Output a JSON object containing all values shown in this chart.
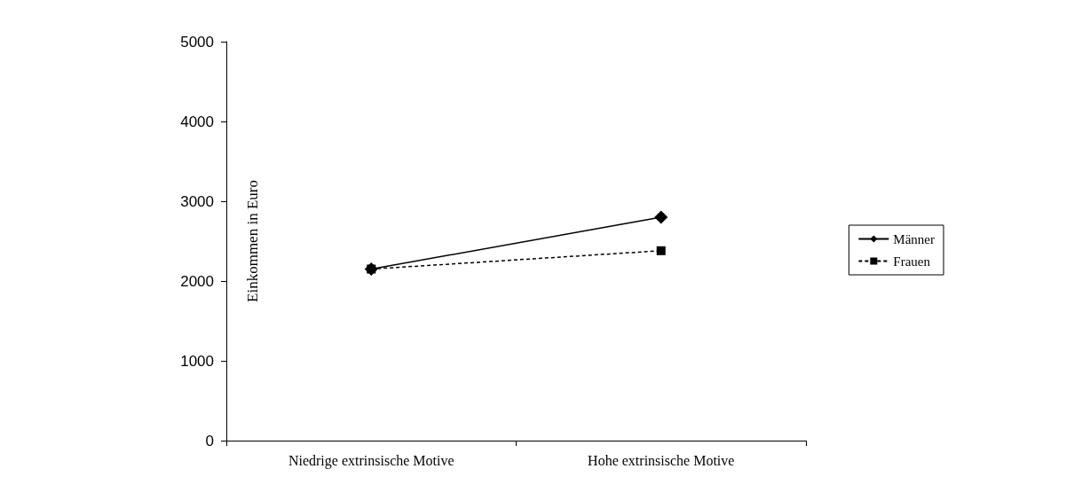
{
  "chart_data": {
    "type": "line",
    "ylabel": "Einkommen in Euro",
    "categories": [
      "Niedrige extrinsische Motive",
      "Hohe extrinsische Motive"
    ],
    "series": [
      {
        "name": "Männer",
        "color": "#000000",
        "values": [
          2150,
          2800
        ],
        "marker": "diamond",
        "line_style": "solid"
      },
      {
        "name": "Frauen",
        "color": "#000000",
        "values": [
          2150,
          2380
        ],
        "marker": "square",
        "line_style": "dashed"
      }
    ],
    "ylim": [
      0,
      5000
    ],
    "yticks": [
      0,
      1000,
      2000,
      3000,
      4000,
      5000
    ],
    "grid": false,
    "legend": "right"
  }
}
